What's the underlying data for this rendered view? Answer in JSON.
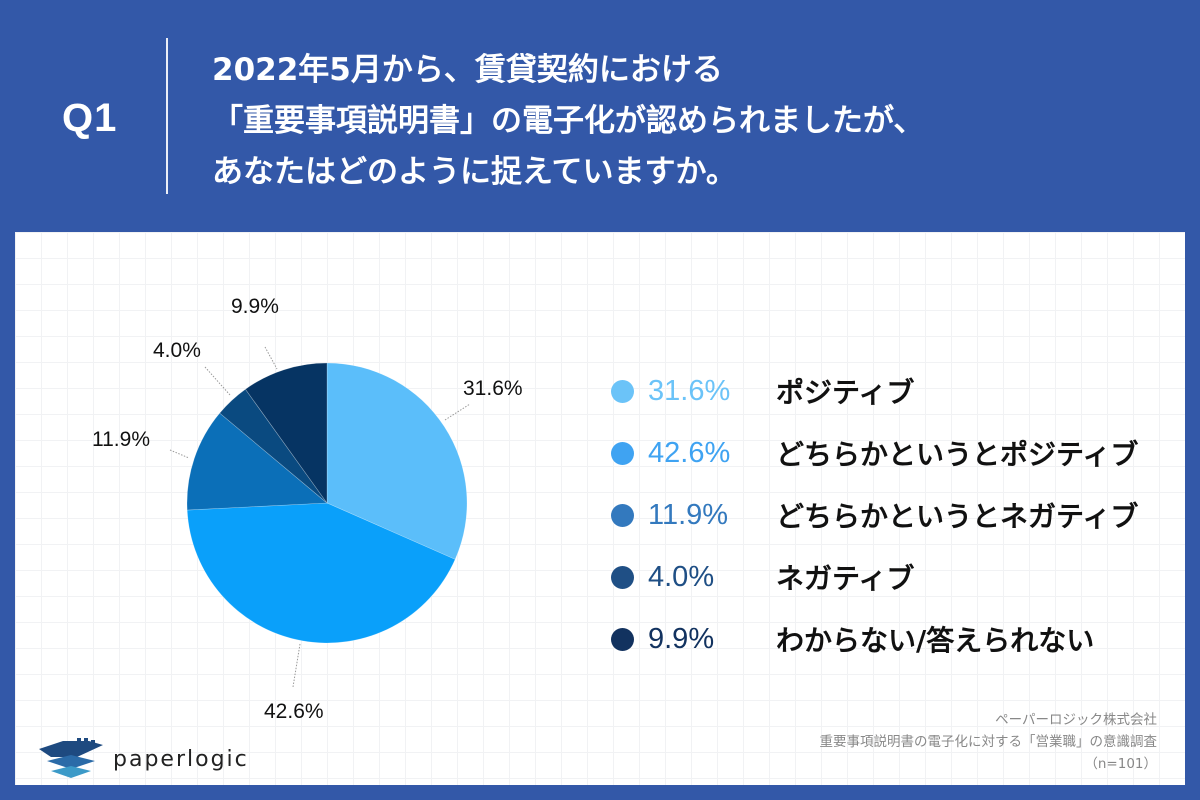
{
  "header": {
    "question_number": "Q1",
    "question_lines": [
      "2022年5月から、賃貸契約における",
      "「重要事項説明書」の電子化が認められましたが、",
      "あなたはどのように捉えていますか。"
    ]
  },
  "colors": {
    "header_bg": "#3358A8",
    "panel_bg": "#FFFFFF",
    "slice_positive": "#5BBEFA",
    "slice_somewhat_positive": "#0AA0FA",
    "slice_somewhat_negative": "#0B6FB8",
    "slice_negative": "#0A4A80",
    "slice_unknown": "#063463"
  },
  "legend": {
    "items": [
      {
        "pct": "31.6%",
        "label": "ポジティブ",
        "dot_color": "#6BC3F8",
        "pct_color": "#6BC3F8"
      },
      {
        "pct": "42.6%",
        "label": "どちらかというとポジティブ",
        "dot_color": "#3FA3F2",
        "pct_color": "#3FA3F2"
      },
      {
        "pct": "11.9%",
        "label": "どちらかというとネガティブ",
        "dot_color": "#3379BE",
        "pct_color": "#3379BE"
      },
      {
        "pct": "4.0%",
        "label": "ネガティブ",
        "dot_color": "#1F4F85",
        "pct_color": "#1F4F85"
      },
      {
        "pct": "9.9%",
        "label": "わからない/答えられない",
        "dot_color": "#12325F",
        "pct_color": "#12325F"
      }
    ]
  },
  "pie_labels": {
    "positive": "31.6%",
    "somewhat_positive": "42.6%",
    "somewhat_negative": "11.9%",
    "negative": "4.0%",
    "unknown": "9.9%"
  },
  "footer": {
    "logo_text": "paperlogic",
    "source_company": "ペーパーロジック株式会社",
    "source_survey": "重要事項説明書の電子化に対する「営業職」の意識調査",
    "sample_size": "（n=101）"
  },
  "chart_data": {
    "type": "pie",
    "title": "2022年5月から、賃貸契約における「重要事項説明書」の電子化が認められましたが、あなたはどのように捉えていますか。",
    "categories": [
      "ポジティブ",
      "どちらかというとポジティブ",
      "どちらかというとネガティブ",
      "ネガティブ",
      "わからない/答えられない"
    ],
    "values": [
      31.6,
      42.6,
      11.9,
      4.0,
      9.9
    ],
    "unit": "%",
    "colors": [
      "#5BBEFA",
      "#0AA0FA",
      "#0B6FB8",
      "#0A4A80",
      "#063463"
    ],
    "start_angle": "12 o'clock",
    "direction": "clockwise",
    "legend_position": "right",
    "sample_size": 101,
    "source": "ペーパーロジック株式会社 重要事項説明書の電子化に対する「営業職」の意識調査"
  }
}
